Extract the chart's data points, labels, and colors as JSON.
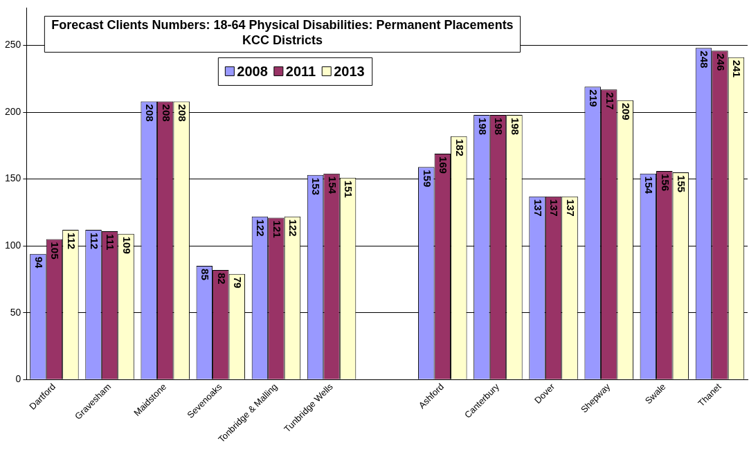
{
  "chart_data": {
    "type": "bar",
    "title": "Forecast Clients Numbers: 18-64 Physical Disabilities: Permanent Placements\nKCC Districts",
    "categories": [
      "Dartford",
      "Gravesham",
      "Maidstone",
      "Sevenoaks",
      "Tonbridge & Malling",
      "Tunbridge Wells",
      null,
      "Ashford",
      "Canterbury",
      "Dover",
      "Shepway",
      "Swale",
      "Thanet"
    ],
    "series": [
      {
        "name": "2008",
        "color": "#9999ff",
        "values": [
          94,
          112,
          208,
          85,
          122,
          153,
          null,
          159,
          198,
          137,
          219,
          154,
          248
        ]
      },
      {
        "name": "2011",
        "color": "#993366",
        "values": [
          105,
          111,
          208,
          82,
          121,
          154,
          null,
          169,
          198,
          137,
          217,
          156,
          246
        ]
      },
      {
        "name": "2013",
        "color": "#ffffcc",
        "values": [
          112,
          109,
          208,
          79,
          122,
          151,
          null,
          182,
          198,
          137,
          209,
          155,
          241
        ]
      }
    ],
    "ylim": [
      0,
      278
    ],
    "yticks": [
      0,
      50,
      100,
      150,
      200,
      250
    ],
    "grid": "y",
    "legend": "top",
    "data_labels": true
  }
}
